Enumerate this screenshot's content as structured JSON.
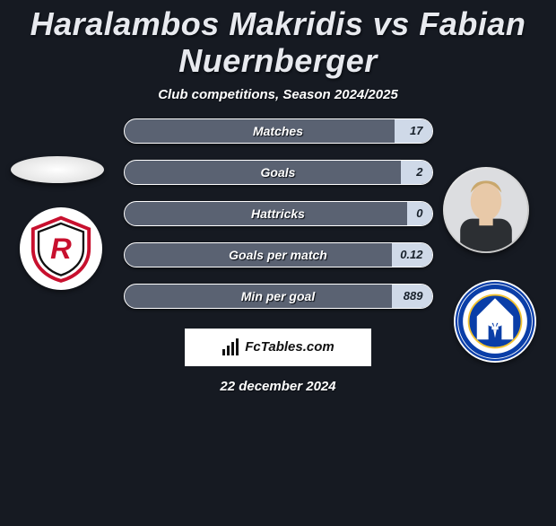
{
  "title": "Haralambos Makridis vs Fabian Nuernberger",
  "subtitle": "Club competitions, Season 2024/2025",
  "date": "22 december 2024",
  "watermark_text": "FcTables.com",
  "colors": {
    "background": "#161a22",
    "bar_fill": "#5a6272",
    "bar_highlight": "#cfd9e8",
    "bar_border": "#ffffff",
    "text": "#ffffff"
  },
  "player_left": {
    "name": "Haralambos Makridis",
    "club_primary": "#c8102e",
    "club_letter": "R"
  },
  "player_right": {
    "name": "Fabian Nuernberger",
    "club_primary": "#0a3ea8",
    "club_ring_text": "SPORTVEREIN · DARMSTADT 1898"
  },
  "stats": [
    {
      "label": "Matches",
      "left_val": "",
      "right_val": "17",
      "left_pct": 0,
      "right_pct": 12
    },
    {
      "label": "Goals",
      "left_val": "",
      "right_val": "2",
      "left_pct": 0,
      "right_pct": 10
    },
    {
      "label": "Hattricks",
      "left_val": "",
      "right_val": "0",
      "left_pct": 0,
      "right_pct": 8
    },
    {
      "label": "Goals per match",
      "left_val": "",
      "right_val": "0.12",
      "left_pct": 0,
      "right_pct": 13
    },
    {
      "label": "Min per goal",
      "left_val": "",
      "right_val": "889",
      "left_pct": 0,
      "right_pct": 13
    }
  ]
}
